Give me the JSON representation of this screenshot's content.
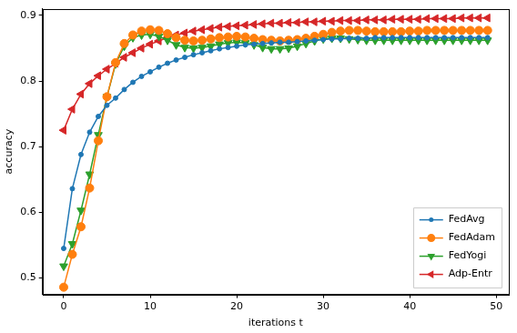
{
  "chart_data": {
    "type": "line",
    "x_label": "iterations t",
    "y_label": "accuracy",
    "x": [
      0,
      1,
      2,
      3,
      4,
      5,
      6,
      7,
      8,
      9,
      10,
      11,
      12,
      13,
      14,
      15,
      16,
      17,
      18,
      19,
      20,
      21,
      22,
      23,
      24,
      25,
      26,
      27,
      28,
      29,
      30,
      31,
      32,
      33,
      34,
      35,
      36,
      37,
      38,
      39,
      40,
      41,
      42,
      43,
      44,
      45,
      46,
      47,
      48,
      49
    ],
    "series": [
      {
        "name": "FedAvg",
        "color": "#1f77b4",
        "marker": "point",
        "line_style": "solid",
        "values": [
          0.545,
          0.636,
          0.688,
          0.722,
          0.746,
          0.763,
          0.774,
          0.787,
          0.798,
          0.807,
          0.814,
          0.821,
          0.827,
          0.832,
          0.836,
          0.84,
          0.843,
          0.846,
          0.849,
          0.851,
          0.853,
          0.855,
          0.856,
          0.857,
          0.858,
          0.859,
          0.859,
          0.86,
          0.861,
          0.862,
          0.863,
          0.864,
          0.864,
          0.865,
          0.865,
          0.865,
          0.866,
          0.866,
          0.866,
          0.866,
          0.866,
          0.866,
          0.866,
          0.866,
          0.866,
          0.866,
          0.866,
          0.866,
          0.866,
          0.866
        ]
      },
      {
        "name": "FedAdam",
        "color": "#ff7f0e",
        "marker": "circle",
        "line_style": "solid",
        "values": [
          0.486,
          0.536,
          0.578,
          0.637,
          0.709,
          0.776,
          0.828,
          0.857,
          0.87,
          0.876,
          0.878,
          0.877,
          0.872,
          0.866,
          0.862,
          0.861,
          0.862,
          0.864,
          0.866,
          0.867,
          0.868,
          0.867,
          0.865,
          0.863,
          0.862,
          0.861,
          0.862,
          0.863,
          0.865,
          0.868,
          0.871,
          0.874,
          0.876,
          0.877,
          0.877,
          0.876,
          0.875,
          0.875,
          0.875,
          0.875,
          0.876,
          0.876,
          0.877,
          0.877,
          0.877,
          0.877,
          0.877,
          0.877,
          0.877,
          0.877
        ]
      },
      {
        "name": "FedYogi",
        "color": "#2ca02c",
        "marker": "triangle_down",
        "line_style": "solid",
        "values": [
          0.518,
          0.552,
          0.603,
          0.658,
          0.718,
          0.776,
          0.826,
          0.853,
          0.866,
          0.87,
          0.871,
          0.868,
          0.862,
          0.855,
          0.851,
          0.85,
          0.851,
          0.853,
          0.856,
          0.858,
          0.859,
          0.858,
          0.855,
          0.851,
          0.849,
          0.849,
          0.85,
          0.853,
          0.857,
          0.861,
          0.864,
          0.865,
          0.865,
          0.864,
          0.863,
          0.862,
          0.862,
          0.862,
          0.862,
          0.862,
          0.862,
          0.862,
          0.862,
          0.862,
          0.862,
          0.862,
          0.862,
          0.862,
          0.862,
          0.862
        ]
      },
      {
        "name": "Adp-Entr",
        "color": "#d62728",
        "marker": "triangle_left",
        "line_style": "solid",
        "values": [
          0.725,
          0.757,
          0.78,
          0.796,
          0.808,
          0.818,
          0.827,
          0.836,
          0.843,
          0.85,
          0.856,
          0.861,
          0.866,
          0.87,
          0.873,
          0.876,
          0.878,
          0.88,
          0.882,
          0.883,
          0.884,
          0.885,
          0.886,
          0.887,
          0.888,
          0.888,
          0.889,
          0.889,
          0.89,
          0.89,
          0.891,
          0.891,
          0.892,
          0.892,
          0.892,
          0.893,
          0.893,
          0.893,
          0.894,
          0.894,
          0.894,
          0.894,
          0.895,
          0.895,
          0.895,
          0.895,
          0.896,
          0.896,
          0.896,
          0.896
        ]
      }
    ],
    "xlim": [
      -2.45,
      51.45
    ],
    "xticks": [
      0,
      10,
      20,
      30,
      40,
      50
    ],
    "ylim": [
      0.475,
      0.91
    ],
    "yticks": [
      0.5,
      0.6,
      0.7,
      0.8,
      0.9
    ],
    "grid": false,
    "legend": "lower right"
  }
}
